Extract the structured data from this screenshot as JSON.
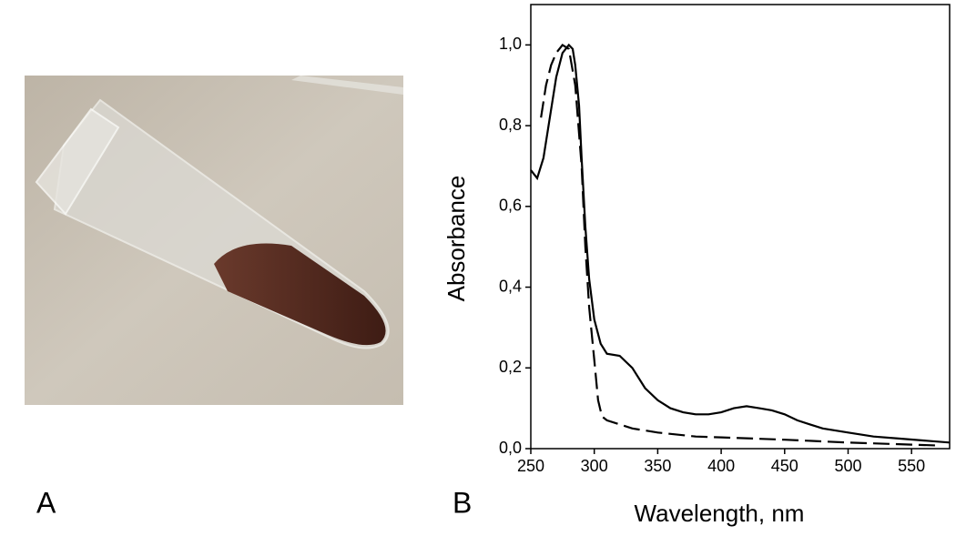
{
  "photo": {
    "label": "A"
  },
  "chart_data": {
    "type": "line",
    "panel_label": "B",
    "x_label": "Wavelength, nm",
    "y_label": "Absorbance",
    "xlim": [
      250,
      580
    ],
    "xticks": [
      250,
      300,
      350,
      400,
      450,
      500,
      550
    ],
    "ylim": [
      0,
      1.1
    ],
    "yticks": [
      {
        "value": 0,
        "label": "0,0"
      },
      {
        "value": 0.2,
        "label": "0,2"
      },
      {
        "value": 0.4,
        "label": "0,4"
      },
      {
        "value": 0.6,
        "label": "0,6"
      },
      {
        "value": 0.8,
        "label": "0,8"
      },
      {
        "value": 1,
        "label": "1,0"
      }
    ],
    "series": [
      {
        "color": "#000000",
        "dash": "none",
        "x": [
          250,
          255,
          260,
          265,
          270,
          275,
          280,
          283,
          285,
          288,
          290,
          293,
          296,
          300,
          305,
          310,
          320,
          330,
          340,
          350,
          360,
          370,
          380,
          390,
          400,
          410,
          420,
          430,
          440,
          450,
          460,
          470,
          480,
          500,
          520,
          540,
          560,
          580
        ],
        "values": [
          0.69,
          0.67,
          0.72,
          0.82,
          0.92,
          0.98,
          1.0,
          0.99,
          0.95,
          0.85,
          0.72,
          0.55,
          0.42,
          0.32,
          0.26,
          0.235,
          0.23,
          0.2,
          0.15,
          0.12,
          0.1,
          0.09,
          0.085,
          0.085,
          0.09,
          0.1,
          0.105,
          0.1,
          0.095,
          0.085,
          0.07,
          0.06,
          0.05,
          0.04,
          0.03,
          0.025,
          0.02,
          0.015
        ]
      },
      {
        "color": "#000000",
        "dash": "18 7",
        "x": [
          258,
          262,
          266,
          270,
          275,
          280,
          285,
          290,
          293,
          296,
          300,
          303,
          306,
          310,
          320,
          330,
          350,
          380,
          400,
          450,
          500,
          550,
          570
        ],
        "values": [
          0.82,
          0.9,
          0.95,
          0.98,
          1.0,
          0.99,
          0.9,
          0.7,
          0.5,
          0.35,
          0.22,
          0.12,
          0.08,
          0.07,
          0.06,
          0.05,
          0.04,
          0.03,
          0.028,
          0.022,
          0.015,
          0.01,
          0.008
        ]
      }
    ]
  }
}
